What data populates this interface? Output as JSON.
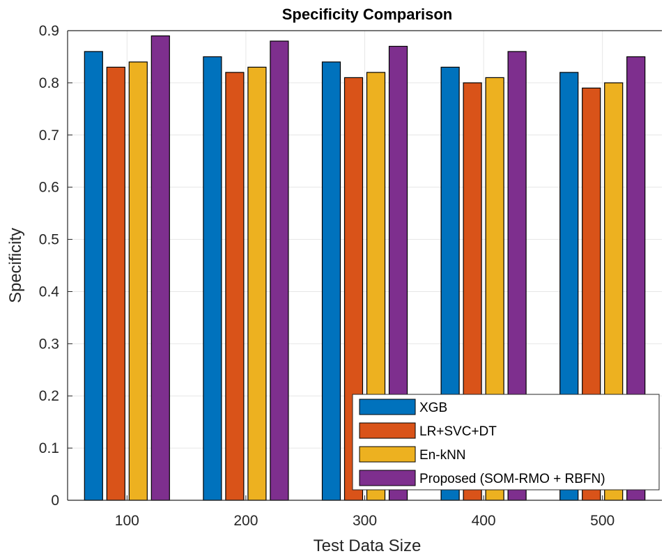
{
  "chart_data": {
    "type": "bar",
    "title": "Specificity Comparison",
    "xlabel": "Test Data Size",
    "ylabel": "Specificity",
    "categories": [
      "100",
      "200",
      "300",
      "400",
      "500"
    ],
    "ylim": [
      0,
      0.9
    ],
    "yticks": [
      "0",
      "0.1",
      "0.2",
      "0.3",
      "0.4",
      "0.5",
      "0.6",
      "0.7",
      "0.8",
      "0.9"
    ],
    "grid": true,
    "legend_position": "bottom-right",
    "series": [
      {
        "name": "XGB",
        "color": "#0072BD",
        "values": [
          0.86,
          0.85,
          0.84,
          0.83,
          0.82
        ]
      },
      {
        "name": "LR+SVC+DT",
        "color": "#D95319",
        "values": [
          0.83,
          0.82,
          0.81,
          0.8,
          0.79
        ]
      },
      {
        "name": "En-kNN",
        "color": "#EDB120",
        "values": [
          0.84,
          0.83,
          0.82,
          0.81,
          0.8
        ]
      },
      {
        "name": "Proposed (SOM-RMO + RBFN)",
        "color": "#7E2F8E",
        "values": [
          0.89,
          0.88,
          0.87,
          0.86,
          0.85
        ]
      }
    ]
  }
}
